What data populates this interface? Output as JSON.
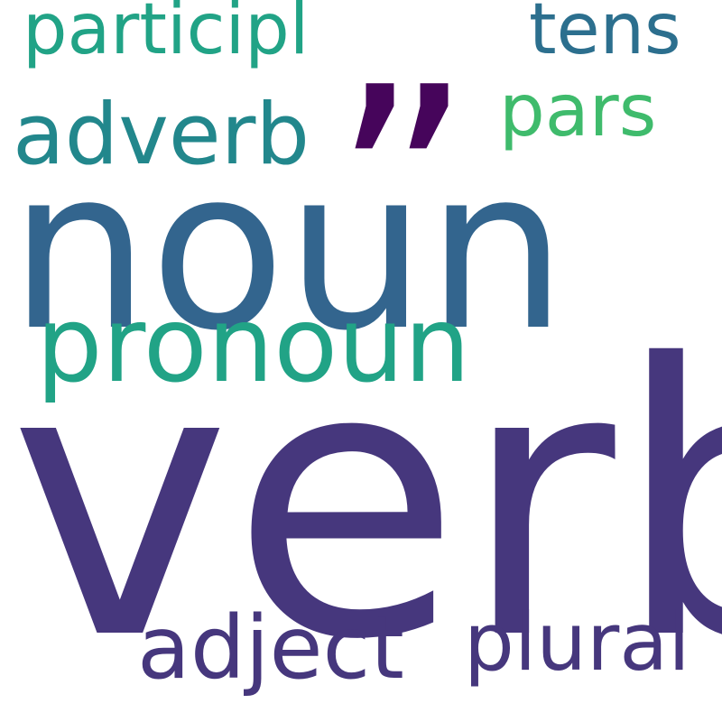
{
  "words": {
    "verb": {
      "text": "verb",
      "color": "#46377d"
    },
    "noun": {
      "text": "noun",
      "color": "#33658e"
    },
    "pronoun": {
      "text": "pronoun",
      "color": "#21a386"
    },
    "adverb": {
      "text": "adverb",
      "color": "#22878c"
    },
    "adject": {
      "text": "adject",
      "color": "#46377d"
    },
    "plural": {
      "text": "plural",
      "color": "#46377d"
    },
    "particip": {
      "text": "participl",
      "color": "#21a386"
    },
    "tens": {
      "text": "tens",
      "color": "#2c6f8e"
    },
    "pars": {
      "text": "pars",
      "color": "#3fbb6c"
    },
    "quote": {
      "text": "”",
      "color": "#46055b"
    }
  }
}
